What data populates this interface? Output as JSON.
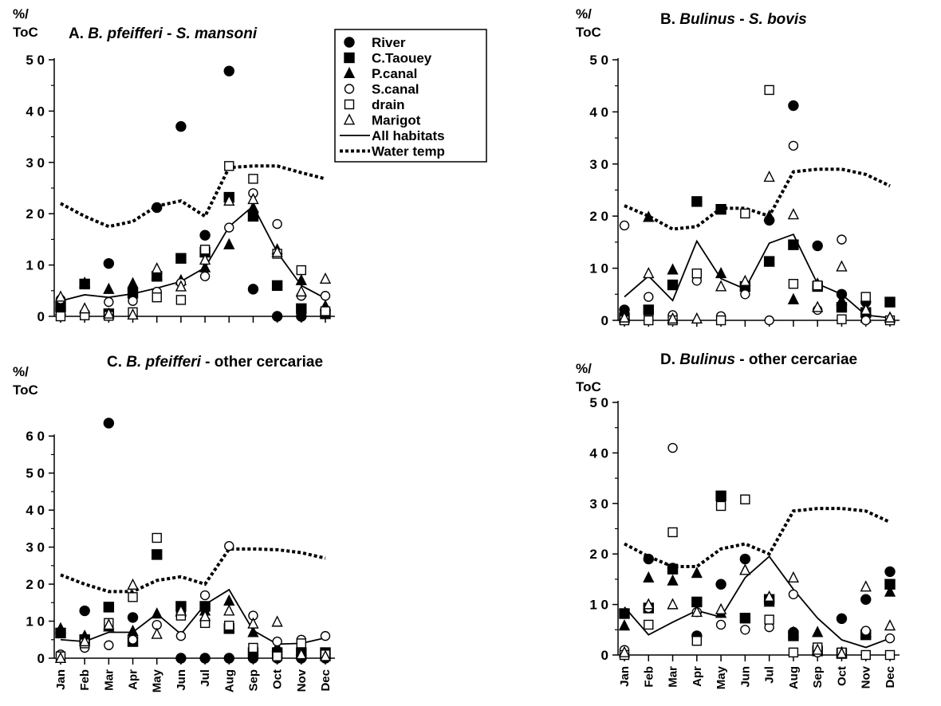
{
  "chart_data": [
    {
      "id": "A",
      "type": "scatter",
      "title_prefix": "A.",
      "title_parts": [
        {
          "text": "B. pfeifferi",
          "italic": true
        },
        {
          "text": " - ",
          "italic": false
        },
        {
          "text": "S. mansoni",
          "italic": true
        }
      ],
      "ylabel_lines": [
        "%/",
        "ToC"
      ],
      "ylim": [
        0,
        50
      ],
      "yticks": [
        0,
        10,
        20,
        30,
        40,
        50
      ],
      "x": [
        "Jan",
        "Feb",
        "Mar",
        "Apr",
        "May",
        "Jun",
        "Jul",
        "Aug",
        "Sep",
        "Oct",
        "Nov",
        "Dec"
      ],
      "show_month_labels": false,
      "series": [
        {
          "name": "River",
          "marker": "filled-circle",
          "values": [
            1.5,
            null,
            10.3,
            null,
            21.2,
            37.0,
            15.8,
            47.8,
            5.3,
            0,
            0,
            null
          ]
        },
        {
          "name": "C.Taouey",
          "marker": "filled-square",
          "values": [
            1.8,
            6.3,
            0.5,
            4.5,
            7.8,
            11.3,
            12.5,
            23.2,
            19.5,
            6.0,
            1.5,
            0.5
          ]
        },
        {
          "name": "P.canal",
          "marker": "filled-triangle",
          "values": [
            1.2,
            6.5,
            5.3,
            6.4,
            8.0,
            7.0,
            9.5,
            14.0,
            21.2,
            13.0,
            7.0,
            2.0
          ]
        },
        {
          "name": "S.canal",
          "marker": "open-circle",
          "values": [
            3.3,
            0.5,
            2.8,
            3.0,
            4.8,
            6.5,
            7.8,
            17.3,
            24.0,
            18.0,
            4.0,
            4.0
          ]
        },
        {
          "name": "drain",
          "marker": "open-square",
          "values": [
            0,
            0.2,
            0.1,
            0.8,
            3.7,
            3.2,
            13.0,
            29.3,
            26.8,
            12.2,
            9.0,
            1.0
          ]
        },
        {
          "name": "Marigot",
          "marker": "open-triangle",
          "values": [
            3.8,
            1.5,
            0.5,
            0.3,
            9.3,
            5.8,
            11.0,
            22.5,
            22.8,
            12.5,
            4.8,
            7.3
          ]
        },
        {
          "name": "All habitats",
          "marker": "solid-line",
          "values": [
            3.0,
            4.2,
            3.7,
            4.4,
            5.5,
            6.8,
            9.5,
            17.5,
            21.5,
            12.5,
            6.0,
            3.5
          ]
        },
        {
          "name": "Water temp",
          "marker": "dotted-line",
          "values": [
            22.0,
            19.5,
            17.5,
            18.5,
            21.5,
            22.5,
            19.5,
            29.0,
            29.3,
            29.3,
            28.0,
            26.8
          ]
        }
      ],
      "legend": "top-right"
    },
    {
      "id": "B",
      "type": "scatter",
      "title_prefix": "B.",
      "title_parts": [
        {
          "text": "Bulinus",
          "italic": true
        },
        {
          "text": " - ",
          "italic": false
        },
        {
          "text": "S. bovis",
          "italic": true
        }
      ],
      "ylabel_lines": [
        "%/",
        "ToC"
      ],
      "ylim": [
        0,
        50
      ],
      "yticks": [
        0,
        10,
        20,
        30,
        40,
        50
      ],
      "x": [
        "Jan",
        "Feb",
        "Mar",
        "Apr",
        "May",
        "Jun",
        "Jul",
        "Aug",
        "Sep",
        "Oct",
        "Nov",
        "Dec"
      ],
      "show_month_labels": false,
      "series": [
        {
          "name": "River",
          "marker": "filled-circle",
          "values": [
            2.0,
            null,
            null,
            null,
            null,
            null,
            19.2,
            41.2,
            14.3,
            5.0,
            3.5,
            null
          ]
        },
        {
          "name": "C.Taouey",
          "marker": "filled-square",
          "values": [
            0.5,
            2.0,
            6.8,
            22.8,
            21.3,
            6.5,
            11.3,
            14.5,
            6.5,
            2.5,
            1.5,
            3.5
          ]
        },
        {
          "name": "P.canal",
          "marker": "filled-triangle",
          "values": [
            1.0,
            19.8,
            9.7,
            null,
            9.0,
            6.5,
            20.0,
            4.0,
            7.0,
            3.8,
            0.5,
            0.5
          ]
        },
        {
          "name": "S.canal",
          "marker": "open-circle",
          "values": [
            18.2,
            4.5,
            1.0,
            7.6,
            0.8,
            5.0,
            0,
            33.5,
            2.0,
            15.5,
            0,
            0
          ]
        },
        {
          "name": "drain",
          "marker": "open-square",
          "values": [
            0,
            0,
            0,
            9.0,
            0,
            20.5,
            44.2,
            7.0,
            6.7,
            0.2,
            4.5,
            0
          ]
        },
        {
          "name": "Marigot",
          "marker": "open-triangle",
          "values": [
            0.5,
            9.0,
            0.3,
            0.3,
            6.5,
            7.5,
            27.5,
            20.3,
            2.5,
            10.3,
            2.0,
            0.5
          ]
        },
        {
          "name": "All habitats",
          "marker": "solid-line",
          "values": [
            4.5,
            8.5,
            3.8,
            15.2,
            8.0,
            6.0,
            14.8,
            16.5,
            7.0,
            5.0,
            1.0,
            0.5
          ]
        },
        {
          "name": "Water temp",
          "marker": "dotted-line",
          "values": [
            22.0,
            20.0,
            17.5,
            18.0,
            21.5,
            21.5,
            20.0,
            28.5,
            29.0,
            29.0,
            28.0,
            25.8
          ]
        }
      ]
    },
    {
      "id": "C",
      "type": "scatter",
      "title_prefix": "C.",
      "title_parts": [
        {
          "text": "B. pfeifferi",
          "italic": true
        },
        {
          "text": " - other cercariae",
          "italic": false
        }
      ],
      "ylabel_lines": [
        "%/",
        "ToC"
      ],
      "ylim": [
        0,
        65
      ],
      "yticks": [
        0,
        10,
        20,
        30,
        40,
        50,
        60
      ],
      "x": [
        "Jan",
        "Feb",
        "Mar",
        "Apr",
        "May",
        "Jun",
        "Jul",
        "Aug",
        "Sep",
        "Oct",
        "Nov",
        "Dec"
      ],
      "show_month_labels": true,
      "series": [
        {
          "name": "River",
          "marker": "filled-circle",
          "values": [
            null,
            12.8,
            63.5,
            11.0,
            null,
            0,
            0,
            0,
            0,
            0,
            0,
            0
          ]
        },
        {
          "name": "C.Taouey",
          "marker": "filled-square",
          "values": [
            6.8,
            5.0,
            13.8,
            4.5,
            28.0,
            14.0,
            14.0,
            8.0,
            1.5,
            1.5,
            1.5,
            1.5
          ]
        },
        {
          "name": "P.canal",
          "marker": "filled-triangle",
          "values": [
            8.0,
            6.0,
            8.5,
            7.3,
            12.0,
            12.5,
            12.8,
            15.5,
            7.0,
            3.0,
            2.0,
            1.0
          ]
        },
        {
          "name": "S.canal",
          "marker": "open-circle",
          "values": [
            1.0,
            2.8,
            3.5,
            5.0,
            9.0,
            6.0,
            17.0,
            30.3,
            11.5,
            4.5,
            5.0,
            6.0
          ]
        },
        {
          "name": "drain",
          "marker": "open-square",
          "values": [
            0.5,
            4.0,
            9.5,
            16.5,
            32.5,
            11.5,
            9.5,
            8.8,
            2.8,
            0.5,
            4.0,
            1.0
          ]
        },
        {
          "name": "Marigot",
          "marker": "open-triangle",
          "values": [
            0,
            4.5,
            9.0,
            19.8,
            6.5,
            12.8,
            11.3,
            12.8,
            9.3,
            9.8,
            1.0,
            0.5
          ]
        },
        {
          "name": "All habitats",
          "marker": "solid-line",
          "values": [
            5.0,
            4.5,
            7.0,
            7.0,
            12.0,
            6.5,
            14.5,
            18.5,
            7.5,
            3.8,
            4.0,
            5.5
          ]
        },
        {
          "name": "Water temp",
          "marker": "dotted-line",
          "values": [
            22.5,
            20.0,
            18.0,
            18.0,
            21.0,
            22.0,
            20.0,
            29.5,
            29.5,
            29.3,
            28.5,
            27.0
          ]
        }
      ]
    },
    {
      "id": "D",
      "type": "scatter",
      "title_prefix": "D.",
      "title_parts": [
        {
          "text": "Bulinus",
          "italic": true
        },
        {
          "text": " - other cercariae",
          "italic": false
        }
      ],
      "ylabel_lines": [
        "%/",
        "ToC"
      ],
      "ylim": [
        0,
        50
      ],
      "yticks": [
        0,
        10,
        20,
        30,
        40,
        50
      ],
      "x": [
        "Jan",
        "Feb",
        "Mar",
        "Apr",
        "May",
        "Jun",
        "Jul",
        "Aug",
        "Sep",
        "Oct",
        "Nov",
        "Dec"
      ],
      "show_month_labels": true,
      "series": [
        {
          "name": "River",
          "marker": "filled-circle",
          "values": [
            null,
            19.0,
            17.2,
            3.8,
            14.0,
            19.0,
            null,
            4.5,
            null,
            7.2,
            11.0,
            16.5
          ]
        },
        {
          "name": "C.Taouey",
          "marker": "filled-square",
          "values": [
            8.2,
            9.3,
            17.0,
            10.5,
            31.5,
            7.3,
            11.0,
            3.8,
            0.8,
            0.3,
            4.0,
            14.0
          ]
        },
        {
          "name": "P.canal",
          "marker": "filled-triangle",
          "values": [
            5.8,
            15.3,
            14.7,
            16.2,
            8.3,
            16.8,
            10.5,
            4.5,
            4.5,
            0.5,
            4.5,
            12.5
          ]
        },
        {
          "name": "S.canal",
          "marker": "open-circle",
          "values": [
            1.0,
            9.3,
            41.0,
            8.5,
            6.0,
            5.0,
            5.5,
            12.0,
            0.5,
            0.5,
            4.8,
            3.3
          ]
        },
        {
          "name": "drain",
          "marker": "open-square",
          "values": [
            0,
            6.0,
            24.3,
            2.8,
            29.5,
            30.8,
            7.0,
            0.5,
            1.5,
            0.5,
            0,
            0
          ]
        },
        {
          "name": "Marigot",
          "marker": "open-triangle",
          "values": [
            0.5,
            10.0,
            10.0,
            8.5,
            9.0,
            16.8,
            11.5,
            15.3,
            1.0,
            0.3,
            13.5,
            5.8
          ]
        },
        {
          "name": "All habitats",
          "marker": "solid-line",
          "values": [
            9.5,
            4.0,
            6.5,
            8.8,
            7.5,
            15.3,
            19.5,
            13.0,
            7.3,
            3.0,
            1.5,
            3.3
          ]
        },
        {
          "name": "Water temp",
          "marker": "dotted-line",
          "values": [
            22.0,
            19.5,
            17.5,
            17.5,
            21.0,
            22.0,
            20.0,
            28.5,
            29.0,
            29.0,
            28.5,
            26.3
          ]
        }
      ]
    }
  ]
}
